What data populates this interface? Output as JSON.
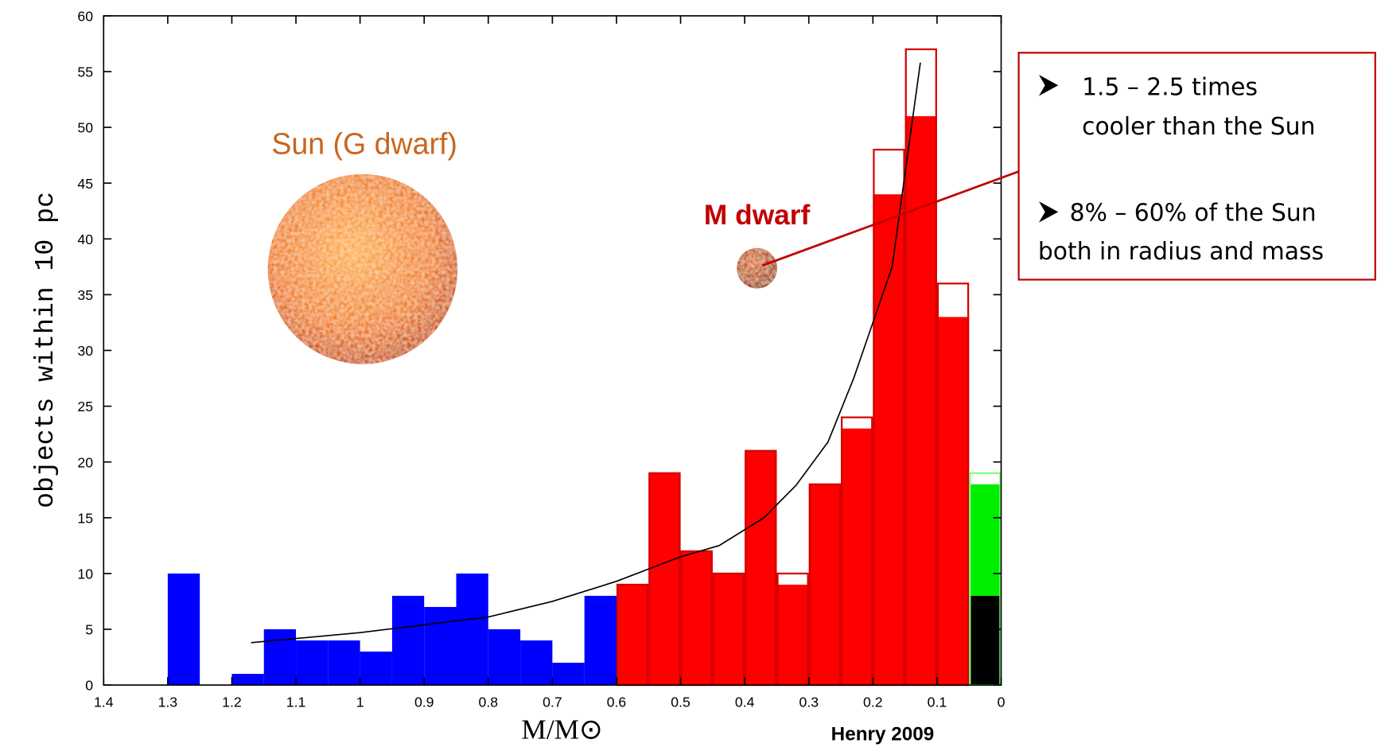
{
  "chart_data": {
    "type": "histogram",
    "y_label": "objects within 10 pc",
    "x_label": "M/M⊙",
    "xlim": [
      1.4,
      0
    ],
    "ylim": [
      0,
      60
    ],
    "xticks": [
      1.4,
      1.3,
      1.2,
      1.1,
      1,
      0.9,
      0.8,
      0.7,
      0.6,
      0.5,
      0.4,
      0.3,
      0.2,
      0.1,
      0
    ],
    "yticks": [
      0,
      5,
      10,
      15,
      20,
      25,
      30,
      35,
      40,
      45,
      50,
      55,
      60
    ],
    "bins": [
      1.3,
      1.25,
      1.2,
      1.15,
      1.1,
      1.05,
      1.0,
      0.95,
      0.9,
      0.85,
      0.8,
      0.75,
      0.7,
      0.65,
      0.6,
      0.55,
      0.5,
      0.45,
      0.4,
      0.35,
      0.3,
      0.25,
      0.2,
      0.15,
      0.1,
      0.05,
      0
    ],
    "series": [
      {
        "color": "#0000ff",
        "style": "fill",
        "values": [
          10,
          null,
          1,
          5,
          4,
          4,
          3,
          8,
          7,
          10,
          5,
          4,
          2,
          8,
          null,
          null,
          null,
          null,
          null,
          null,
          null,
          null,
          null,
          null,
          null,
          null
        ]
      },
      {
        "color": "#ff0000",
        "style": "fill",
        "values": [
          null,
          null,
          null,
          null,
          null,
          null,
          null,
          null,
          null,
          null,
          null,
          null,
          null,
          null,
          9,
          19,
          12,
          10,
          21,
          9,
          18,
          23,
          44,
          51,
          33,
          null
        ]
      },
      {
        "color": "#000000",
        "style": "fill",
        "values": [
          null,
          null,
          null,
          null,
          null,
          null,
          null,
          null,
          null,
          null,
          null,
          null,
          null,
          null,
          null,
          null,
          null,
          null,
          null,
          null,
          null,
          null,
          null,
          null,
          null,
          8
        ]
      },
      {
        "color": "#00ee00",
        "style": "fill",
        "values": [
          null,
          null,
          null,
          null,
          null,
          null,
          null,
          null,
          null,
          null,
          null,
          null,
          null,
          null,
          null,
          null,
          null,
          null,
          null,
          null,
          null,
          null,
          null,
          null,
          null,
          10
        ]
      },
      {
        "color": "#d40000",
        "style": "outline",
        "values": [
          null,
          null,
          null,
          null,
          null,
          null,
          null,
          null,
          null,
          null,
          null,
          null,
          null,
          null,
          9,
          19,
          12,
          10,
          21,
          10,
          18,
          24,
          48,
          57,
          36,
          null
        ]
      },
      {
        "color": "#7dff7d",
        "style": "outline",
        "values": [
          null,
          null,
          null,
          null,
          null,
          null,
          null,
          null,
          null,
          null,
          null,
          null,
          null,
          null,
          null,
          null,
          null,
          null,
          null,
          null,
          null,
          null,
          null,
          null,
          null,
          19
        ]
      }
    ],
    "fit": {
      "color": "#000000",
      "x": [
        1.17,
        1.0,
        0.8,
        0.7,
        0.6,
        0.5,
        0.44,
        0.37,
        0.32,
        0.27,
        0.23,
        0.17,
        0.126
      ],
      "y": [
        3.8,
        4.7,
        6.1,
        7.5,
        9.3,
        11.5,
        12.5,
        15,
        17.9,
        21.8,
        27.5,
        37.5,
        55.8
      ]
    },
    "annotations": {
      "sun": "Sun (G dwarf)",
      "m_dwarf": "M dwarf",
      "source": "Henry 2009",
      "box": [
        [
          "1.5 – 2.5 times",
          "cooler than the Sun"
        ],
        [
          "8% – 60% of the Sun",
          "both in radius and mass"
        ]
      ]
    }
  }
}
